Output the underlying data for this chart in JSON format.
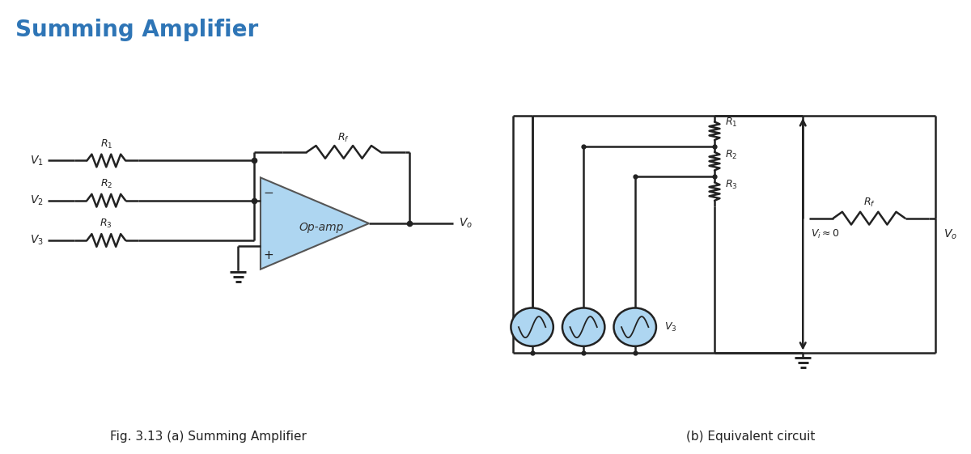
{
  "title": "Summing Amplifier",
  "title_color": "#2E75B6",
  "title_fontsize": 20,
  "bg_color": "#ffffff",
  "fig_caption_a": "Fig. 3.13 (a) Summing Amplifier",
  "fig_caption_b": "(b) Equivalent circuit",
  "opamp_fill": "#AED6F1",
  "opamp_edge": "#555555",
  "line_color": "#222222",
  "source_fill": "#AED6F1",
  "lw": 1.8
}
